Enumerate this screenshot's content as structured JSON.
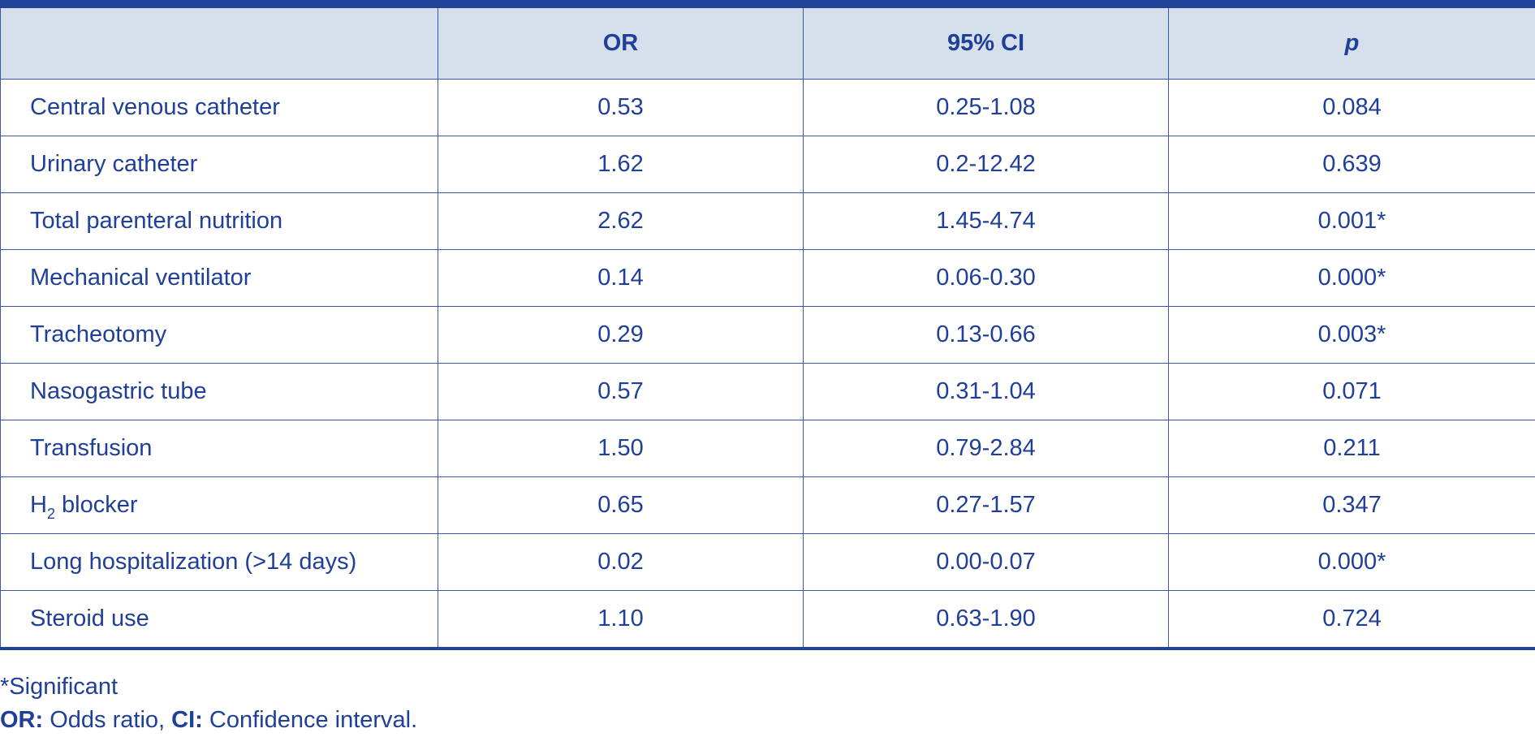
{
  "table": {
    "headers": {
      "variable": "",
      "or": "OR",
      "ci": "95% CI",
      "p": "p"
    },
    "rows": [
      {
        "variable": "Central venous catheter",
        "or": "0.53",
        "ci": "0.25-1.08",
        "p": "0.084"
      },
      {
        "variable": "Urinary catheter",
        "or": "1.62",
        "ci": "0.2-12.42",
        "p": "0.639"
      },
      {
        "variable": "Total parenteral nutrition",
        "or": "2.62",
        "ci": "1.45-4.74",
        "p": "0.001*"
      },
      {
        "variable": "Mechanical ventilator",
        "or": "0.14",
        "ci": "0.06-0.30",
        "p": "0.000*"
      },
      {
        "variable": "Tracheotomy",
        "or": "0.29",
        "ci": "0.13-0.66",
        "p": "0.003*"
      },
      {
        "variable": "Nasogastric tube",
        "or": "0.57",
        "ci": "0.31-1.04",
        "p": "0.071"
      },
      {
        "variable": "Transfusion",
        "or": "1.50",
        "ci": "0.79-2.84",
        "p": "0.211"
      },
      {
        "variable_prefix": "H",
        "variable_sub": "2",
        "variable_suffix": " blocker",
        "or": "0.65",
        "ci": "0.27-1.57",
        "p": "0.347"
      },
      {
        "variable": "Long hospitalization (>14 days)",
        "or": "0.02",
        "ci": "0.00-0.07",
        "p": "0.000*"
      },
      {
        "variable": "Steroid use",
        "or": "1.10",
        "ci": "0.63-1.90",
        "p": "0.724"
      }
    ]
  },
  "footnotes": {
    "significant": "*Significant",
    "or_abbr": "OR:",
    "or_def": " Odds ratio, ",
    "ci_abbr": "CI:",
    "ci_def": " Confidence interval."
  },
  "colors": {
    "text": "#1f3f98",
    "rule": "#21449a",
    "header_bg": "#d6dfec",
    "border": "#3a57a8"
  }
}
